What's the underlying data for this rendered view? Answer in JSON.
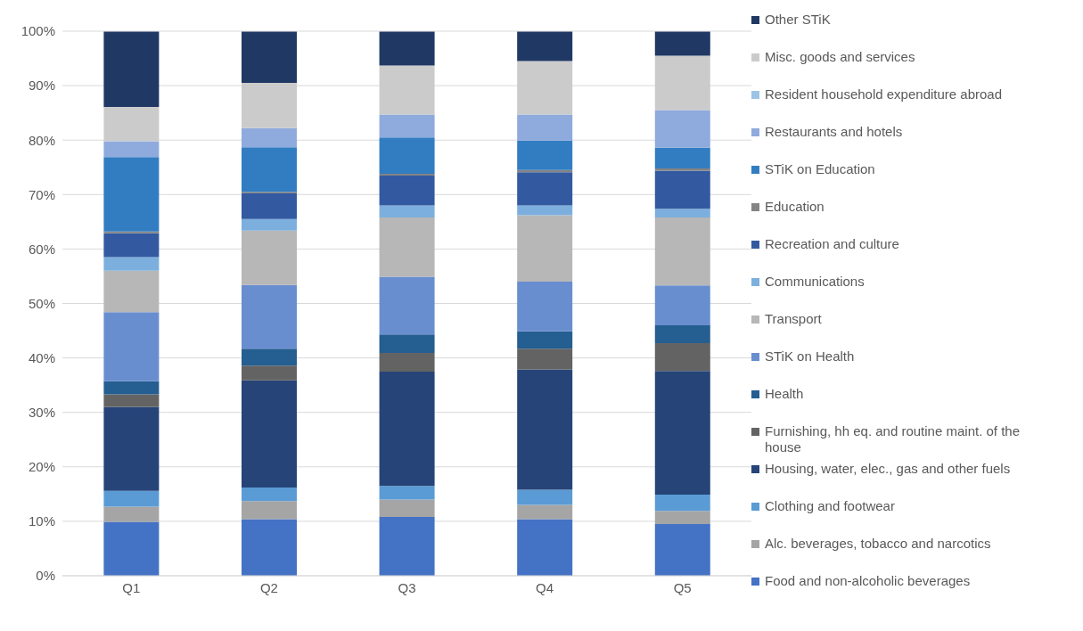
{
  "chart_data": {
    "type": "bar",
    "stacked": true,
    "categories": [
      "Q1",
      "Q2",
      "Q3",
      "Q4",
      "Q5"
    ],
    "ylim": [
      0,
      100
    ],
    "yticks": [
      {
        "value": 0,
        "label": "0%"
      },
      {
        "value": 10,
        "label": "10%"
      },
      {
        "value": 20,
        "label": "20%"
      },
      {
        "value": 30,
        "label": "30%"
      },
      {
        "value": 40,
        "label": "40%"
      },
      {
        "value": 50,
        "label": "50%"
      },
      {
        "value": 60,
        "label": "60%"
      },
      {
        "value": 70,
        "label": "70%"
      },
      {
        "value": 80,
        "label": "80%"
      },
      {
        "value": 90,
        "label": "90%"
      },
      {
        "value": 100,
        "label": "100%"
      }
    ],
    "grid": "y",
    "legend": "right",
    "series": [
      {
        "name": "Food and non-alcoholic beverages",
        "color": "#4472c4",
        "values": [
          9.9,
          10.4,
          10.8,
          10.4,
          9.5
        ]
      },
      {
        "name": "Alc. beverages, tobacco and narcotics",
        "color": "#a5a5a5",
        "values": [
          2.8,
          3.3,
          3.2,
          2.6,
          2.4
        ]
      },
      {
        "name": "Clothing and footwear",
        "color": "#5b9bd5",
        "values": [
          2.9,
          2.5,
          2.5,
          2.8,
          3.0
        ]
      },
      {
        "name": "Housing, water, elec., gas and other fuels",
        "color": "#264478",
        "values": [
          15.4,
          19.7,
          21.0,
          22.1,
          22.7
        ]
      },
      {
        "name": "Furnishing, hh eq. and routine maint. of the house",
        "color": "#636363",
        "values": [
          2.3,
          2.7,
          3.4,
          3.8,
          5.1
        ]
      },
      {
        "name": "Health",
        "color": "#255e91",
        "values": [
          2.4,
          3.1,
          3.4,
          3.2,
          3.3
        ]
      },
      {
        "name": "STiK on Health",
        "color": "#698ed0",
        "values": [
          12.7,
          11.7,
          10.6,
          9.1,
          7.3
        ]
      },
      {
        "name": "Transport",
        "color": "#b7b7b7",
        "values": [
          7.6,
          10.0,
          10.9,
          12.2,
          12.5
        ]
      },
      {
        "name": "Communications",
        "color": "#7cafdd",
        "values": [
          2.5,
          2.1,
          2.2,
          1.8,
          1.6
        ]
      },
      {
        "name": "Recreation and culture",
        "color": "#335aa1",
        "values": [
          4.4,
          4.7,
          5.5,
          6.1,
          7.0
        ]
      },
      {
        "name": "Education",
        "color": "#848484",
        "values": [
          0.3,
          0.3,
          0.3,
          0.4,
          0.4
        ]
      },
      {
        "name": "STiK on Education",
        "color": "#327dc2",
        "values": [
          13.7,
          8.2,
          6.7,
          5.4,
          3.8
        ]
      },
      {
        "name": "Restaurants and hotels",
        "color": "#8faadc",
        "values": [
          2.9,
          3.5,
          4.2,
          4.8,
          6.9
        ]
      },
      {
        "name": "Resident household expenditure abroad",
        "color": "#9dc3e6",
        "values": [
          null,
          null,
          null,
          null,
          null
        ]
      },
      {
        "name": "Misc. goods and services",
        "color": "#cbcbcb",
        "values": [
          6.3,
          8.3,
          9.0,
          9.8,
          10.0
        ]
      },
      {
        "name": "Other STiK",
        "color": "#203864",
        "values": [
          13.8,
          9.4,
          6.2,
          5.4,
          4.4
        ]
      }
    ]
  }
}
